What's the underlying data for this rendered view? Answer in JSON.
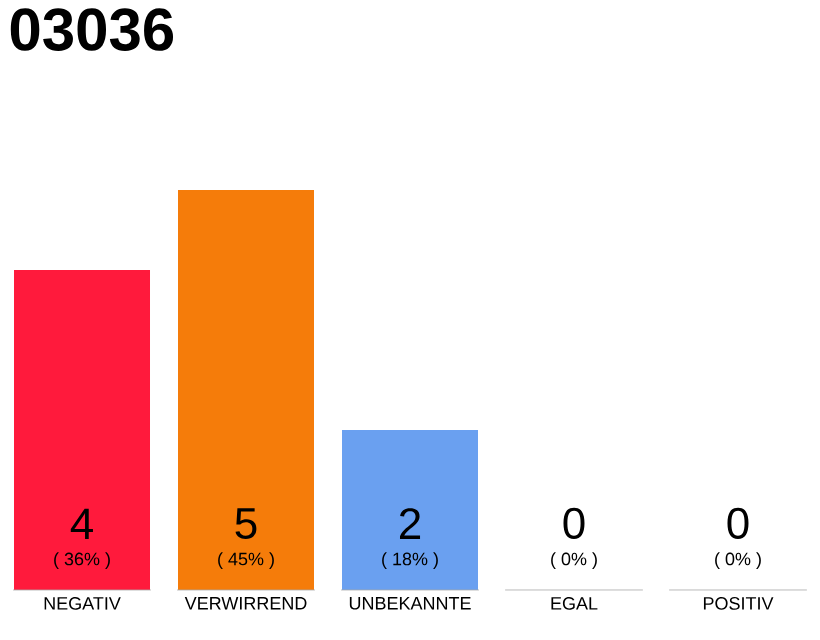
{
  "chart_data": {
    "type": "bar",
    "title": "03036",
    "categories": [
      "NEGATIV",
      "VERWIRREND",
      "UNBEKANNTE",
      "EGAL",
      "POSITIV"
    ],
    "values": [
      4,
      5,
      2,
      0,
      0
    ],
    "colors": [
      "#ff1a3c",
      "#f57c0a",
      "#6aa0f0",
      "#cccccc",
      "#cccccc"
    ],
    "ylim": [
      0,
      5
    ],
    "data_labels": true,
    "annotations": [
      "( 36% )",
      "( 45% )",
      "( 18% )",
      "( 0% )",
      "( 0% )"
    ]
  }
}
